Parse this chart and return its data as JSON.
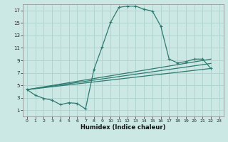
{
  "bg_color": "#cce8e4",
  "grid_color": "#b0d4d0",
  "line_color": "#2d7a70",
  "xlabel": "Humidex (Indice chaleur)",
  "xlim": [
    -0.5,
    23.5
  ],
  "ylim": [
    0,
    18
  ],
  "xticks": [
    0,
    1,
    2,
    3,
    4,
    5,
    6,
    7,
    8,
    9,
    10,
    11,
    12,
    13,
    14,
    15,
    16,
    17,
    18,
    19,
    20,
    21,
    22,
    23
  ],
  "yticks": [
    1,
    3,
    5,
    7,
    9,
    11,
    13,
    15,
    17
  ],
  "curve1_x": [
    0,
    1,
    2,
    3,
    4,
    5,
    6,
    7,
    8,
    9,
    10,
    11,
    12,
    13,
    14,
    15,
    16,
    17,
    18,
    19,
    20,
    21,
    22
  ],
  "curve1_y": [
    4.3,
    3.4,
    2.9,
    2.6,
    1.9,
    2.2,
    2.1,
    1.2,
    7.5,
    11.2,
    15.1,
    17.5,
    17.7,
    17.7,
    17.2,
    16.9,
    14.5,
    9.2,
    8.6,
    8.8,
    9.2,
    9.2,
    7.7
  ],
  "curve2_x": [
    0,
    22
  ],
  "curve2_y": [
    4.3,
    7.7
  ],
  "curve3_x": [
    0,
    22
  ],
  "curve3_y": [
    4.3,
    8.5
  ],
  "curve4_x": [
    0,
    22
  ],
  "curve4_y": [
    4.3,
    9.2
  ]
}
